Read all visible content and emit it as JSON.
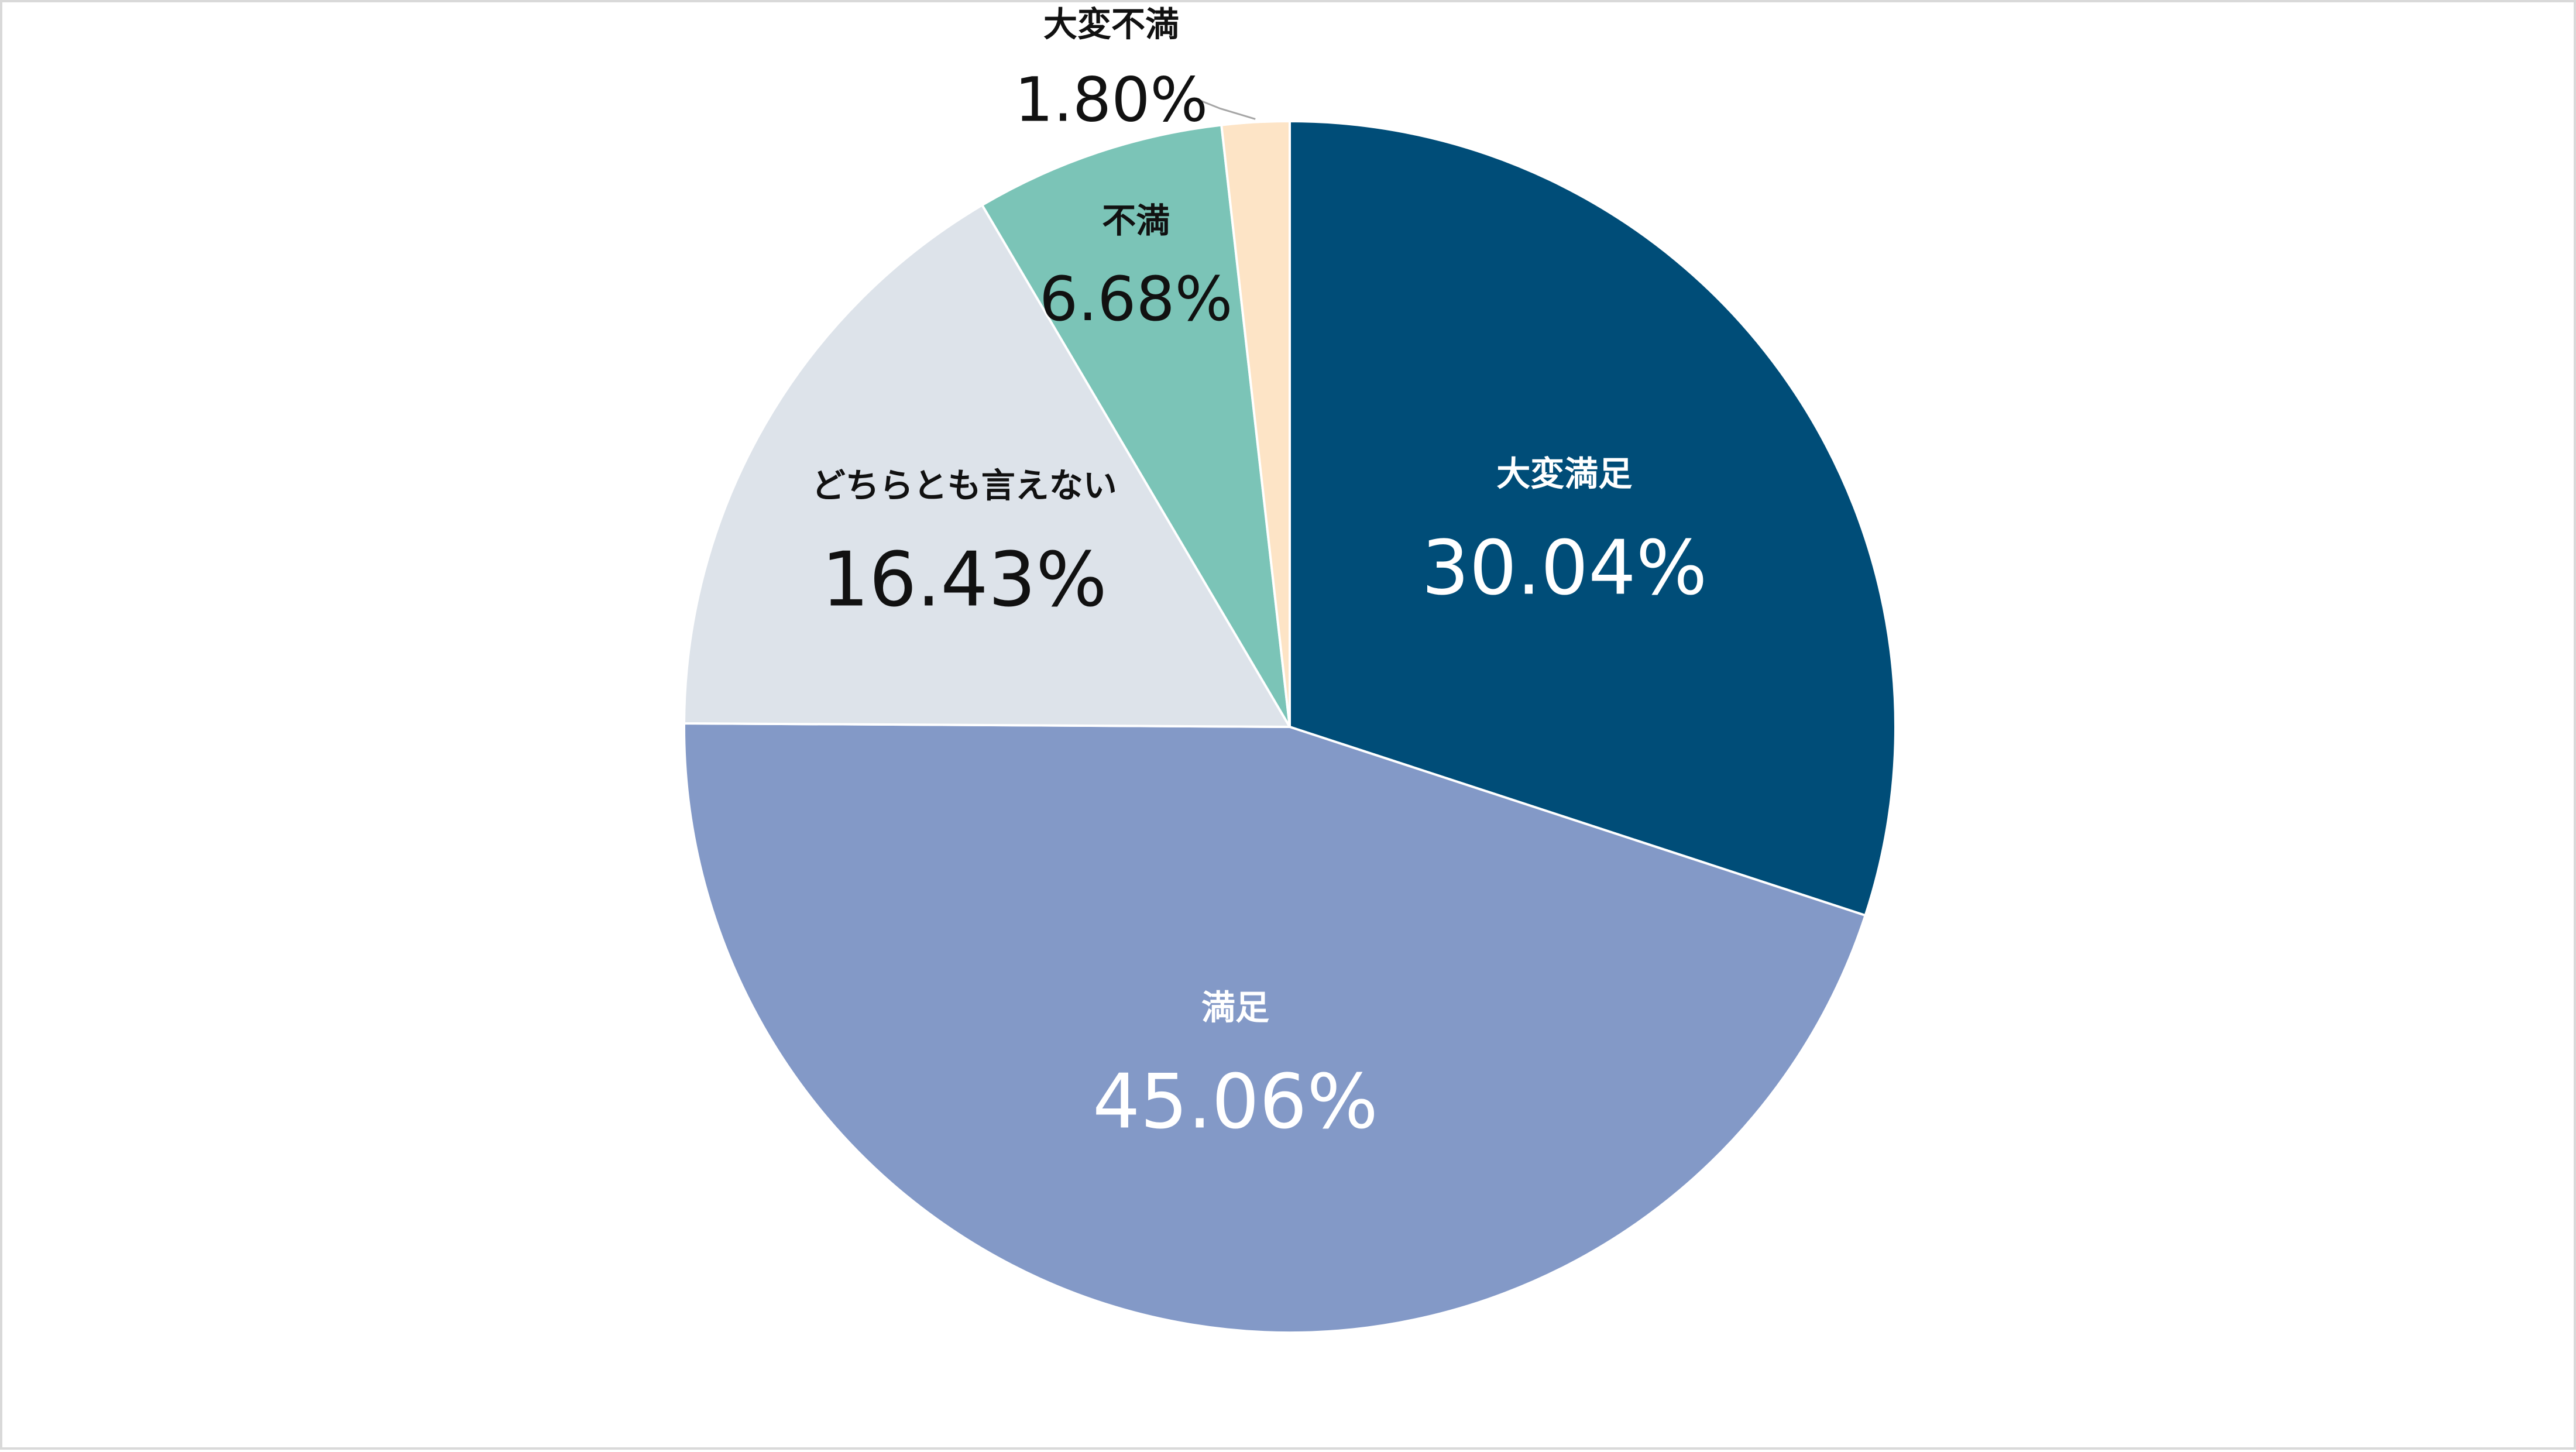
{
  "chart_data": {
    "type": "pie",
    "title": "",
    "start": "top-center",
    "direction": "clockwise",
    "legend": "none",
    "slices": [
      {
        "label": "大変満足",
        "value": 30.04,
        "display": "30.04%",
        "color": "#004d78",
        "text_color": "#ffffff"
      },
      {
        "label": "満足",
        "value": 45.06,
        "display": "45.06%",
        "color": "#8399c7",
        "text_color": "#ffffff"
      },
      {
        "label": "どちらとも言えない",
        "value": 16.43,
        "display": "16.43%",
        "color": "#dde3ea",
        "text_color": "#111111"
      },
      {
        "label": "不満",
        "value": 6.68,
        "display": "6.68%",
        "color": "#7bc4b7",
        "text_color": "#111111"
      },
      {
        "label": "大変不満",
        "value": 1.8,
        "display": "1.80%",
        "color": "#fde4c6",
        "text_color": "#111111"
      }
    ]
  }
}
